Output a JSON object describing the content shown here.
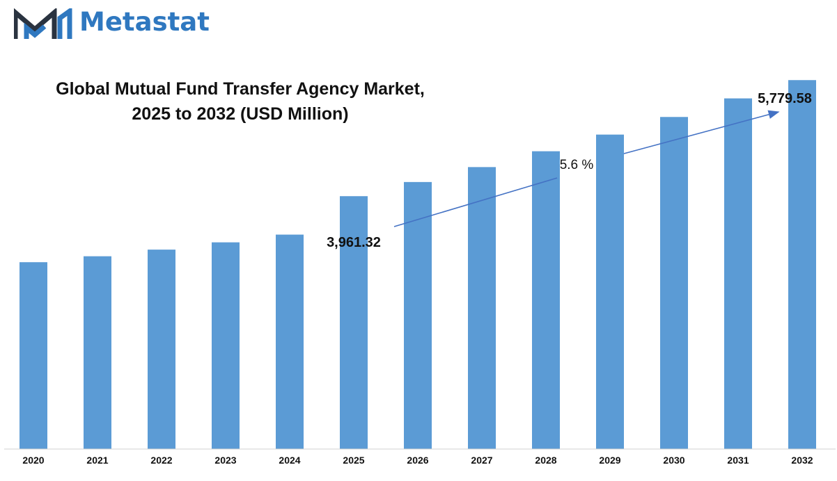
{
  "brand": {
    "name": "Metastat",
    "colors": {
      "mark_blue": "#2f78c0",
      "mark_dark": "#2a3340"
    },
    "icon": "metastat-logo-icon"
  },
  "chart_data": {
    "type": "bar",
    "title_line1": "Global Mutual Fund Transfer Agency Market,",
    "title_line2": "2025 to 2032 (USD Million)",
    "xlabel": "",
    "ylabel": "",
    "categories": [
      "2020",
      "2021",
      "2022",
      "2023",
      "2024",
      "2025",
      "2026",
      "2027",
      "2028",
      "2029",
      "2030",
      "2031",
      "2032"
    ],
    "values": [
      2927,
      3020,
      3124,
      3238,
      3359,
      3961.32,
      4183,
      4417,
      4665,
      4926,
      5202,
      5493,
      5779.58
    ],
    "ylim": [
      0,
      6000
    ],
    "bar_color": "#5b9bd5",
    "grid": false,
    "annotations": {
      "start_label": "3,961.32",
      "end_label": "5,779.58",
      "cagr_label": "5.6 %"
    }
  }
}
